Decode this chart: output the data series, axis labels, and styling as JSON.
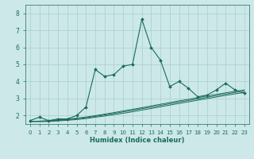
{
  "title": "",
  "xlabel": "Humidex (Indice chaleur)",
  "ylabel": "",
  "xlim": [
    -0.5,
    23.5
  ],
  "ylim": [
    1.5,
    8.5
  ],
  "yticks": [
    2,
    3,
    4,
    5,
    6,
    7,
    8
  ],
  "xticks": [
    0,
    1,
    2,
    3,
    4,
    5,
    6,
    7,
    8,
    9,
    10,
    11,
    12,
    13,
    14,
    15,
    16,
    17,
    18,
    19,
    20,
    21,
    22,
    23
  ],
  "xtick_labels": [
    "0",
    "1",
    "2",
    "3",
    "4",
    "5",
    "6",
    "7",
    "8",
    "9",
    "10",
    "11",
    "12",
    "13",
    "14",
    "15",
    "16",
    "17",
    "18",
    "19",
    "20",
    "21",
    "22",
    "23"
  ],
  "bg_color": "#cce8e8",
  "grid_color": "#aacece",
  "line_color": "#1a6b5a",
  "series_main": [
    1.7,
    1.9,
    1.7,
    1.8,
    1.8,
    2.0,
    2.5,
    4.7,
    4.3,
    4.4,
    4.9,
    5.0,
    7.65,
    6.0,
    5.25,
    3.7,
    4.0,
    3.6,
    3.1,
    3.2,
    3.5,
    3.9,
    3.5,
    3.3
  ],
  "series_flat1": [
    1.65,
    1.65,
    1.65,
    1.68,
    1.72,
    1.76,
    1.82,
    1.9,
    1.97,
    2.05,
    2.13,
    2.22,
    2.32,
    2.41,
    2.51,
    2.61,
    2.71,
    2.8,
    2.9,
    2.99,
    3.09,
    3.18,
    3.27,
    3.35
  ],
  "series_flat2": [
    1.65,
    1.65,
    1.67,
    1.71,
    1.76,
    1.81,
    1.87,
    1.95,
    2.03,
    2.12,
    2.21,
    2.3,
    2.4,
    2.49,
    2.59,
    2.69,
    2.79,
    2.88,
    2.98,
    3.07,
    3.17,
    3.26,
    3.35,
    3.43
  ],
  "series_flat3": [
    1.65,
    1.67,
    1.7,
    1.74,
    1.79,
    1.84,
    1.91,
    1.99,
    2.08,
    2.17,
    2.27,
    2.36,
    2.46,
    2.56,
    2.66,
    2.76,
    2.86,
    2.95,
    3.05,
    3.15,
    3.24,
    3.33,
    3.42,
    3.5
  ],
  "x": [
    0,
    1,
    2,
    3,
    4,
    5,
    6,
    7,
    8,
    9,
    10,
    11,
    12,
    13,
    14,
    15,
    16,
    17,
    18,
    19,
    20,
    21,
    22,
    23
  ]
}
